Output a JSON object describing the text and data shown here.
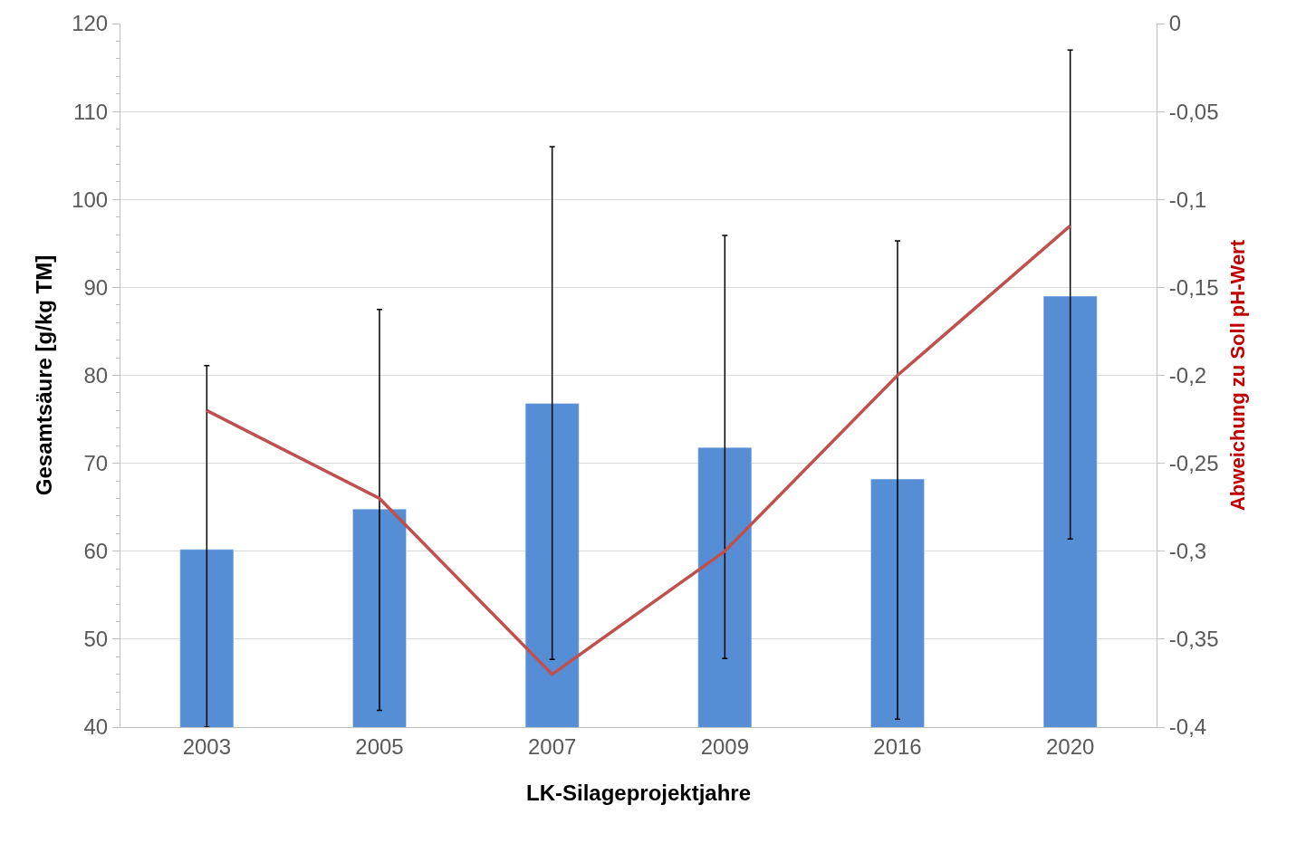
{
  "chart_data": {
    "type": "bar",
    "xlabel": "LK-Silageprojektjahre",
    "ylabel": "Gesamtsäure [g/kg TM]",
    "y2label": "Abweichung zu Soll pH-Wert",
    "categories": [
      "2003",
      "2005",
      "2007",
      "2009",
      "2016",
      "2020"
    ],
    "series": [
      {
        "color": "#558ed5",
        "values": [
          60.2,
          64.8,
          76.8,
          71.8,
          68.2,
          89.0
        ],
        "errors": [
          [
            40,
            81.1
          ],
          [
            41.9,
            87.5
          ],
          [
            47.7,
            106
          ],
          [
            47.8,
            95.9
          ],
          [
            40.9,
            95.3
          ],
          [
            61.4,
            117
          ]
        ]
      },
      {
        "type": "line",
        "axis": "y2",
        "color": "#c0504d",
        "values": [
          -0.22,
          -0.27,
          -0.37,
          -0.3,
          -0.2,
          -0.115
        ]
      }
    ],
    "ylim": [
      40,
      120
    ],
    "yticks": [
      40,
      50,
      60,
      70,
      80,
      90,
      100,
      110,
      120
    ],
    "y2lim": [
      -0.4,
      0
    ],
    "y2ticks": [
      {
        "value": -0.4,
        "label": "-0,4"
      },
      {
        "value": -0.35,
        "label": "-0,35"
      },
      {
        "value": -0.3,
        "label": "-0,3"
      },
      {
        "value": -0.25,
        "label": "-0,25"
      },
      {
        "value": -0.2,
        "label": "-0,2"
      },
      {
        "value": -0.15,
        "label": "-0,15"
      },
      {
        "value": -0.1,
        "label": "-0,1"
      },
      {
        "value": -0.05,
        "label": "-0,05"
      },
      {
        "value": 0,
        "label": "0"
      }
    ],
    "grid": "y",
    "legend": false,
    "marker": "none",
    "line_style": "solid"
  }
}
